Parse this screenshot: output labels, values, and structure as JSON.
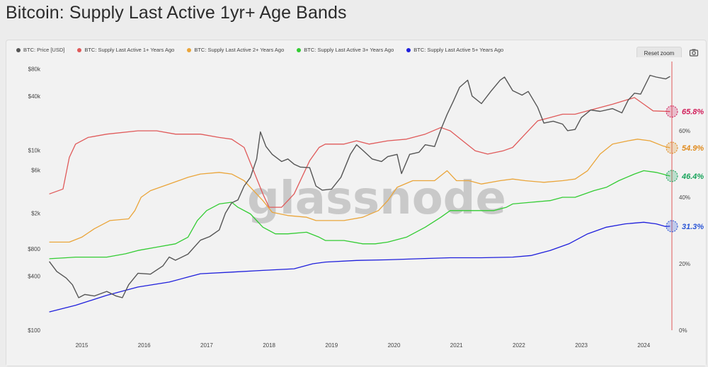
{
  "page": {
    "title": "Bitcoin: Supply Last Active 1yr+ Age Bands"
  },
  "toolbar": {
    "reset_zoom": "Reset zoom",
    "camera_icon": "camera-icon"
  },
  "watermark": "glassnode",
  "colors": {
    "price": "#555555",
    "band1": "#e05a5a",
    "band2": "#eaa53a",
    "band3": "#33cc33",
    "band5": "#1f1fdc",
    "axis_right": "#e05a5a",
    "end1": "#d11e5a",
    "end2": "#e08a1c",
    "end3": "#17a35a",
    "end5": "#2a55d6"
  },
  "chart_data": {
    "type": "line",
    "title": "Bitcoin: Supply Last Active 1yr+ Age Bands",
    "legend_position": "top-left",
    "grid": false,
    "x_ticks": [
      "2015",
      "2016",
      "2017",
      "2018",
      "2019",
      "2020",
      "2021",
      "2022",
      "2023",
      "2024"
    ],
    "xlim": [
      2014.55,
      2024.55
    ],
    "y_left": {
      "scale": "log",
      "ylim": [
        100,
        90000
      ],
      "ticks": [
        "$80k",
        "$40k",
        "$10k",
        "$6k",
        "$2k",
        "$800",
        "$400",
        "$100"
      ],
      "tick_values": [
        80000,
        40000,
        10000,
        6000,
        2000,
        800,
        400,
        100
      ]
    },
    "y_right": {
      "scale": "linear",
      "ylim": [
        0,
        80
      ],
      "ticks": [
        "60%",
        "40%",
        "20%",
        "0%"
      ],
      "tick_values": [
        60,
        40,
        20,
        0
      ]
    },
    "series": [
      {
        "name": "BTC: Price [USD]",
        "axis": "left",
        "color_key": "price",
        "points": [
          [
            2014.58,
            580
          ],
          [
            2014.7,
            450
          ],
          [
            2014.85,
            380
          ],
          [
            2014.95,
            320
          ],
          [
            2015.05,
            230
          ],
          [
            2015.15,
            250
          ],
          [
            2015.3,
            240
          ],
          [
            2015.5,
            270
          ],
          [
            2015.65,
            240
          ],
          [
            2015.75,
            230
          ],
          [
            2015.85,
            320
          ],
          [
            2016.0,
            430
          ],
          [
            2016.2,
            420
          ],
          [
            2016.4,
            520
          ],
          [
            2016.5,
            650
          ],
          [
            2016.6,
            600
          ],
          [
            2016.8,
            700
          ],
          [
            2017.0,
            1000
          ],
          [
            2017.15,
            1100
          ],
          [
            2017.3,
            1300
          ],
          [
            2017.4,
            2000
          ],
          [
            2017.5,
            2600
          ],
          [
            2017.6,
            2800
          ],
          [
            2017.7,
            4000
          ],
          [
            2017.8,
            5000
          ],
          [
            2017.9,
            8000
          ],
          [
            2017.96,
            16000
          ],
          [
            2018.05,
            11000
          ],
          [
            2018.15,
            9000
          ],
          [
            2018.3,
            7500
          ],
          [
            2018.4,
            8000
          ],
          [
            2018.5,
            7000
          ],
          [
            2018.6,
            6500
          ],
          [
            2018.75,
            6400
          ],
          [
            2018.85,
            4000
          ],
          [
            2018.95,
            3600
          ],
          [
            2019.1,
            3700
          ],
          [
            2019.25,
            5000
          ],
          [
            2019.4,
            9000
          ],
          [
            2019.5,
            11500
          ],
          [
            2019.6,
            10000
          ],
          [
            2019.75,
            8000
          ],
          [
            2019.9,
            7500
          ],
          [
            2020.0,
            8500
          ],
          [
            2020.15,
            9000
          ],
          [
            2020.22,
            5500
          ],
          [
            2020.35,
            9000
          ],
          [
            2020.5,
            9500
          ],
          [
            2020.6,
            11500
          ],
          [
            2020.75,
            11000
          ],
          [
            2020.85,
            17000
          ],
          [
            2020.95,
            25000
          ],
          [
            2021.05,
            35000
          ],
          [
            2021.15,
            50000
          ],
          [
            2021.28,
            60000
          ],
          [
            2021.35,
            40000
          ],
          [
            2021.5,
            33000
          ],
          [
            2021.65,
            45000
          ],
          [
            2021.8,
            60000
          ],
          [
            2021.87,
            65000
          ],
          [
            2022.0,
            46000
          ],
          [
            2022.15,
            41000
          ],
          [
            2022.25,
            45000
          ],
          [
            2022.4,
            30000
          ],
          [
            2022.5,
            20000
          ],
          [
            2022.65,
            21000
          ],
          [
            2022.8,
            19500
          ],
          [
            2022.88,
            16500
          ],
          [
            2023.0,
            17000
          ],
          [
            2023.1,
            23000
          ],
          [
            2023.25,
            28000
          ],
          [
            2023.4,
            27000
          ],
          [
            2023.6,
            29000
          ],
          [
            2023.75,
            26000
          ],
          [
            2023.85,
            36000
          ],
          [
            2023.95,
            43000
          ],
          [
            2024.05,
            42000
          ],
          [
            2024.2,
            68000
          ],
          [
            2024.3,
            65000
          ],
          [
            2024.45,
            62000
          ],
          [
            2024.52,
            66000
          ]
        ]
      },
      {
        "name": "BTC: Supply Last Active 1+ Years Ago",
        "axis": "right",
        "color_key": "band1",
        "points": [
          [
            2014.58,
            41
          ],
          [
            2014.8,
            42.5
          ],
          [
            2014.9,
            52
          ],
          [
            2015.0,
            56
          ],
          [
            2015.2,
            58
          ],
          [
            2015.5,
            59
          ],
          [
            2016.0,
            60
          ],
          [
            2016.3,
            60
          ],
          [
            2016.6,
            59
          ],
          [
            2017.0,
            59
          ],
          [
            2017.3,
            58
          ],
          [
            2017.5,
            57.5
          ],
          [
            2017.7,
            55
          ],
          [
            2017.85,
            48
          ],
          [
            2018.0,
            41
          ],
          [
            2018.1,
            37
          ],
          [
            2018.3,
            37
          ],
          [
            2018.5,
            41
          ],
          [
            2018.75,
            51
          ],
          [
            2018.9,
            55
          ],
          [
            2019.0,
            56
          ],
          [
            2019.3,
            56
          ],
          [
            2019.5,
            57
          ],
          [
            2019.7,
            56
          ],
          [
            2020.0,
            57
          ],
          [
            2020.3,
            57.5
          ],
          [
            2020.6,
            59
          ],
          [
            2020.85,
            61
          ],
          [
            2021.0,
            60
          ],
          [
            2021.2,
            57
          ],
          [
            2021.4,
            54
          ],
          [
            2021.6,
            53
          ],
          [
            2021.85,
            54
          ],
          [
            2022.0,
            55
          ],
          [
            2022.2,
            59
          ],
          [
            2022.4,
            63
          ],
          [
            2022.6,
            64
          ],
          [
            2022.8,
            65
          ],
          [
            2023.0,
            65
          ],
          [
            2023.3,
            66.5
          ],
          [
            2023.6,
            68
          ],
          [
            2023.95,
            70
          ],
          [
            2024.1,
            68
          ],
          [
            2024.25,
            66
          ],
          [
            2024.52,
            65.8
          ]
        ]
      },
      {
        "name": "BTC: Supply Last Active 2+ Years Ago",
        "axis": "right",
        "color_key": "band2",
        "points": [
          [
            2014.58,
            26.5
          ],
          [
            2014.9,
            26.5
          ],
          [
            2015.1,
            28
          ],
          [
            2015.3,
            30.5
          ],
          [
            2015.55,
            33
          ],
          [
            2015.85,
            33.5
          ],
          [
            2015.95,
            36
          ],
          [
            2016.05,
            40
          ],
          [
            2016.2,
            42
          ],
          [
            2016.5,
            44
          ],
          [
            2016.8,
            46
          ],
          [
            2017.0,
            47
          ],
          [
            2017.3,
            47.5
          ],
          [
            2017.5,
            47
          ],
          [
            2017.7,
            45
          ],
          [
            2017.85,
            42
          ],
          [
            2018.0,
            39
          ],
          [
            2018.15,
            35.5
          ],
          [
            2018.4,
            34.5
          ],
          [
            2018.7,
            34
          ],
          [
            2018.85,
            33
          ],
          [
            2019.0,
            33
          ],
          [
            2019.3,
            33
          ],
          [
            2019.6,
            34
          ],
          [
            2019.85,
            36
          ],
          [
            2020.0,
            39
          ],
          [
            2020.15,
            43
          ],
          [
            2020.4,
            45
          ],
          [
            2020.75,
            45
          ],
          [
            2020.95,
            48
          ],
          [
            2021.1,
            45
          ],
          [
            2021.3,
            45
          ],
          [
            2021.5,
            44
          ],
          [
            2021.8,
            45
          ],
          [
            2022.0,
            45.5
          ],
          [
            2022.2,
            45
          ],
          [
            2022.5,
            44.5
          ],
          [
            2022.8,
            45
          ],
          [
            2023.0,
            45.5
          ],
          [
            2023.2,
            48
          ],
          [
            2023.4,
            53
          ],
          [
            2023.6,
            56
          ],
          [
            2023.85,
            57
          ],
          [
            2024.0,
            57.5
          ],
          [
            2024.2,
            57
          ],
          [
            2024.4,
            55.5
          ],
          [
            2024.52,
            54.9
          ]
        ]
      },
      {
        "name": "BTC: Supply Last Active 3+ Years Ago",
        "axis": "right",
        "color_key": "band3",
        "points": [
          [
            2014.58,
            21.5
          ],
          [
            2014.85,
            21.8
          ],
          [
            2015.0,
            22
          ],
          [
            2015.5,
            22
          ],
          [
            2015.8,
            23
          ],
          [
            2016.0,
            24
          ],
          [
            2016.3,
            25
          ],
          [
            2016.6,
            26
          ],
          [
            2016.8,
            28
          ],
          [
            2016.95,
            33
          ],
          [
            2017.1,
            36
          ],
          [
            2017.3,
            38
          ],
          [
            2017.5,
            38.5
          ],
          [
            2017.6,
            37
          ],
          [
            2017.8,
            35
          ],
          [
            2018.0,
            31
          ],
          [
            2018.2,
            29
          ],
          [
            2018.4,
            29
          ],
          [
            2018.7,
            29.5
          ],
          [
            2018.9,
            28
          ],
          [
            2019.0,
            27
          ],
          [
            2019.3,
            27
          ],
          [
            2019.6,
            26
          ],
          [
            2019.8,
            26
          ],
          [
            2020.0,
            26.5
          ],
          [
            2020.3,
            28
          ],
          [
            2020.6,
            31
          ],
          [
            2020.85,
            34
          ],
          [
            2021.0,
            36
          ],
          [
            2021.3,
            36
          ],
          [
            2021.7,
            36
          ],
          [
            2021.9,
            37
          ],
          [
            2022.0,
            38
          ],
          [
            2022.3,
            38.5
          ],
          [
            2022.6,
            39
          ],
          [
            2022.8,
            40
          ],
          [
            2023.0,
            40
          ],
          [
            2023.3,
            42
          ],
          [
            2023.5,
            43
          ],
          [
            2023.7,
            45
          ],
          [
            2023.95,
            47
          ],
          [
            2024.1,
            48
          ],
          [
            2024.3,
            47.5
          ],
          [
            2024.52,
            46.4
          ]
        ]
      },
      {
        "name": "BTC: Supply Last Active 5+ Years Ago",
        "axis": "right",
        "color_key": "band5",
        "points": [
          [
            2014.58,
            5.5
          ],
          [
            2015.0,
            7.5
          ],
          [
            2015.5,
            10.5
          ],
          [
            2016.0,
            13
          ],
          [
            2016.5,
            14.5
          ],
          [
            2016.8,
            16
          ],
          [
            2017.0,
            17
          ],
          [
            2017.5,
            17.5
          ],
          [
            2018.0,
            18
          ],
          [
            2018.5,
            18.5
          ],
          [
            2018.8,
            20
          ],
          [
            2019.0,
            20.5
          ],
          [
            2019.5,
            21
          ],
          [
            2020.0,
            21.2
          ],
          [
            2020.5,
            21.5
          ],
          [
            2021.0,
            21.8
          ],
          [
            2021.5,
            21.8
          ],
          [
            2022.0,
            22
          ],
          [
            2022.3,
            22.5
          ],
          [
            2022.6,
            24
          ],
          [
            2022.9,
            26
          ],
          [
            2023.2,
            29
          ],
          [
            2023.5,
            31
          ],
          [
            2023.8,
            32
          ],
          [
            2024.1,
            32.5
          ],
          [
            2024.3,
            32
          ],
          [
            2024.45,
            31.2
          ],
          [
            2024.52,
            31.3
          ]
        ]
      }
    ],
    "end_labels": [
      {
        "text": "65.8%",
        "value": 65.8,
        "color_key": "end1"
      },
      {
        "text": "54.9%",
        "value": 54.9,
        "color_key": "end2"
      },
      {
        "text": "46.4%",
        "value": 46.4,
        "color_key": "end3"
      },
      {
        "text": "31.3%",
        "value": 31.3,
        "color_key": "end5"
      }
    ]
  }
}
